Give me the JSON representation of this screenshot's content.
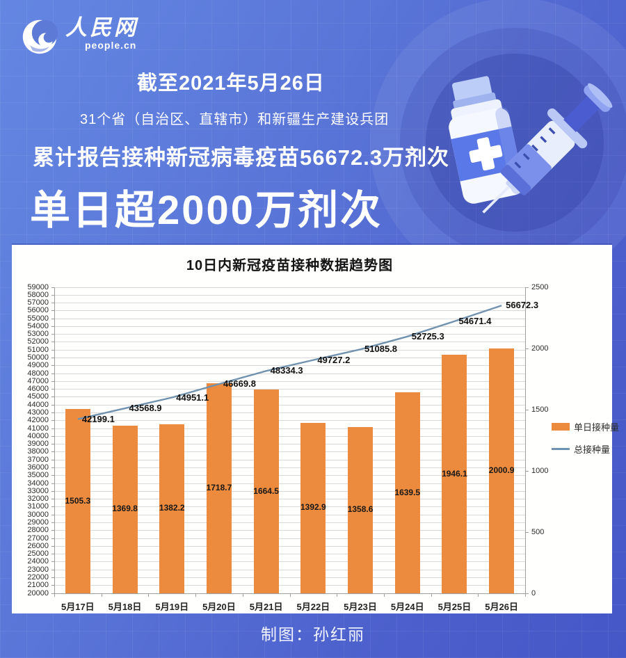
{
  "logo": {
    "title": "人民网",
    "domain": "people.cn"
  },
  "header": {
    "date_line": "截至2021年5月26日",
    "scope_line": "31个省（自治区、直辖市）和新疆生产建设兵团",
    "cumulative_line": "累计报告接种新冠病毒疫苗56672.3万剂次",
    "headline": "单日超2000万剂次"
  },
  "footer": {
    "credit": "制图：孙红丽"
  },
  "colors": {
    "background_top": "#6487e2",
    "background_bottom": "#4557c6",
    "bar": "#ec8b3e",
    "line": "#7092ae",
    "card": "#ffffff",
    "gridline": "#d9d9d9"
  },
  "chart_data": {
    "type": "bar",
    "combo": "bar+line",
    "title": "10日内新冠疫苗接种数据趋势图",
    "categories": [
      "5月17日",
      "5月18日",
      "5月19日",
      "5月20日",
      "5月21日",
      "5月22日",
      "5月23日",
      "5月24日",
      "5月25日",
      "5月26日"
    ],
    "series": [
      {
        "name": "单日接种量",
        "type": "bar",
        "axis": "right",
        "color": "#ec8b3e",
        "values": [
          1505.3,
          1369.8,
          1382.2,
          1718.7,
          1664.5,
          1392.9,
          1358.6,
          1639.5,
          1946.1,
          2000.9
        ]
      },
      {
        "name": "总接种量",
        "type": "line",
        "axis": "left",
        "color": "#7092ae",
        "values": [
          42199.1,
          43568.9,
          44951.1,
          46669.8,
          48334.3,
          49727.2,
          51085.8,
          52725.3,
          54671.4,
          56672.3
        ]
      }
    ],
    "left_axis": {
      "min": 20000,
      "max": 59000,
      "step": 1000
    },
    "right_axis": {
      "min": 0,
      "max": 2500,
      "step": 500
    },
    "xlabel": "",
    "ylabel": "",
    "grid": true,
    "legend_position": "right",
    "data_labels": true
  }
}
